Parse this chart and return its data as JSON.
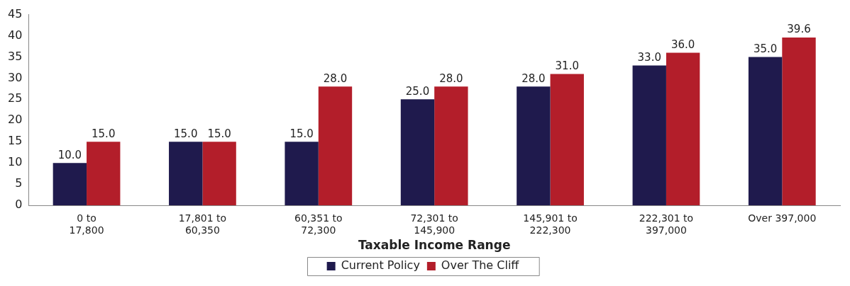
{
  "chart_data": {
    "type": "bar",
    "xlabel": "Taxable Income Range",
    "categories": [
      "0 to\n17,800",
      "17,801 to\n60,350",
      "60,351 to\n72,300",
      "72,301 to\n145,900",
      "145,901 to\n222,300",
      "222,301 to\n397,000",
      "Over 397,000"
    ],
    "series": [
      {
        "name": "Current Policy",
        "color": "#1f1a4d",
        "values": [
          10,
          15,
          15,
          25,
          28,
          33,
          35
        ],
        "value_labels": [
          "10.0",
          "15.0",
          "15.0",
          "25.0",
          "28.0",
          "33.0",
          "35.0"
        ]
      },
      {
        "name": "Over The Cliff",
        "color": "#b31e2a",
        "values": [
          15,
          15,
          28,
          28,
          31,
          36,
          39.6
        ],
        "value_labels": [
          "15.0",
          "15.0",
          "28.0",
          "28.0",
          "31.0",
          "36.0",
          "39.6"
        ]
      }
    ],
    "ylim": [
      0,
      45
    ],
    "yticks": [
      0,
      5,
      10,
      15,
      20,
      25,
      30,
      35,
      40,
      45
    ],
    "grid": false,
    "legend": "bottom"
  }
}
